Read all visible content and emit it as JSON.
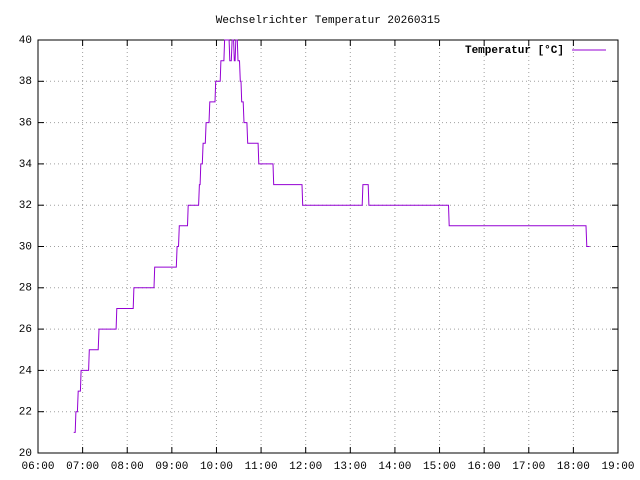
{
  "chart_data": {
    "type": "line",
    "title": "Wechselrichter Temperatur 20260315",
    "x": [
      "06:48",
      "06:50",
      "06:51",
      "06:53",
      "06:54",
      "06:57",
      "06:58",
      "07:08",
      "07:09",
      "07:21",
      "07:22",
      "07:45",
      "07:46",
      "08:08",
      "08:09",
      "08:36",
      "08:37",
      "09:06",
      "09:07",
      "09:09",
      "09:10",
      "09:21",
      "09:22",
      "09:36",
      "09:37",
      "09:38",
      "09:39",
      "09:41",
      "09:42",
      "09:45",
      "09:46",
      "09:50",
      "09:51",
      "09:58",
      "09:59",
      "10:05",
      "10:06",
      "10:10",
      "10:11",
      "10:17",
      "10:18",
      "10:20",
      "10:21",
      "10:23",
      "10:24",
      "10:25",
      "10:26",
      "10:28",
      "10:29",
      "10:31",
      "10:32",
      "10:33",
      "10:34",
      "10:36",
      "10:37",
      "10:41",
      "10:42",
      "10:56",
      "10:57",
      "11:16",
      "11:17",
      "11:55",
      "11:56",
      "13:16",
      "13:17",
      "13:24",
      "13:25",
      "15:12",
      "15:13",
      "18:17",
      "18:18",
      "18:22"
    ],
    "series": [
      {
        "name": "Temperatur [°C]",
        "color": "#9400d3",
        "values": [
          21,
          21,
          22,
          22,
          23,
          23,
          24,
          24,
          25,
          25,
          26,
          26,
          27,
          27,
          28,
          28,
          29,
          29,
          30,
          30,
          31,
          31,
          32,
          32,
          33,
          33,
          34,
          34,
          35,
          35,
          36,
          36,
          37,
          37,
          38,
          38,
          39,
          39,
          40,
          40,
          39,
          39,
          40,
          40,
          39,
          39,
          40,
          40,
          39,
          39,
          38,
          38,
          37,
          37,
          36,
          36,
          35,
          35,
          34,
          34,
          33,
          33,
          32,
          32,
          33,
          33,
          32,
          32,
          31,
          31,
          30,
          30
        ]
      }
    ],
    "xlim": [
      "06:00",
      "19:00"
    ],
    "xticks": [
      "06:00",
      "07:00",
      "08:00",
      "09:00",
      "10:00",
      "11:00",
      "12:00",
      "13:00",
      "14:00",
      "15:00",
      "16:00",
      "17:00",
      "18:00",
      "19:00"
    ],
    "ylim": [
      20,
      40
    ],
    "yticks": [
      20,
      22,
      24,
      26,
      28,
      30,
      32,
      34,
      36,
      38,
      40
    ],
    "grid": true,
    "legend": "top-right"
  }
}
